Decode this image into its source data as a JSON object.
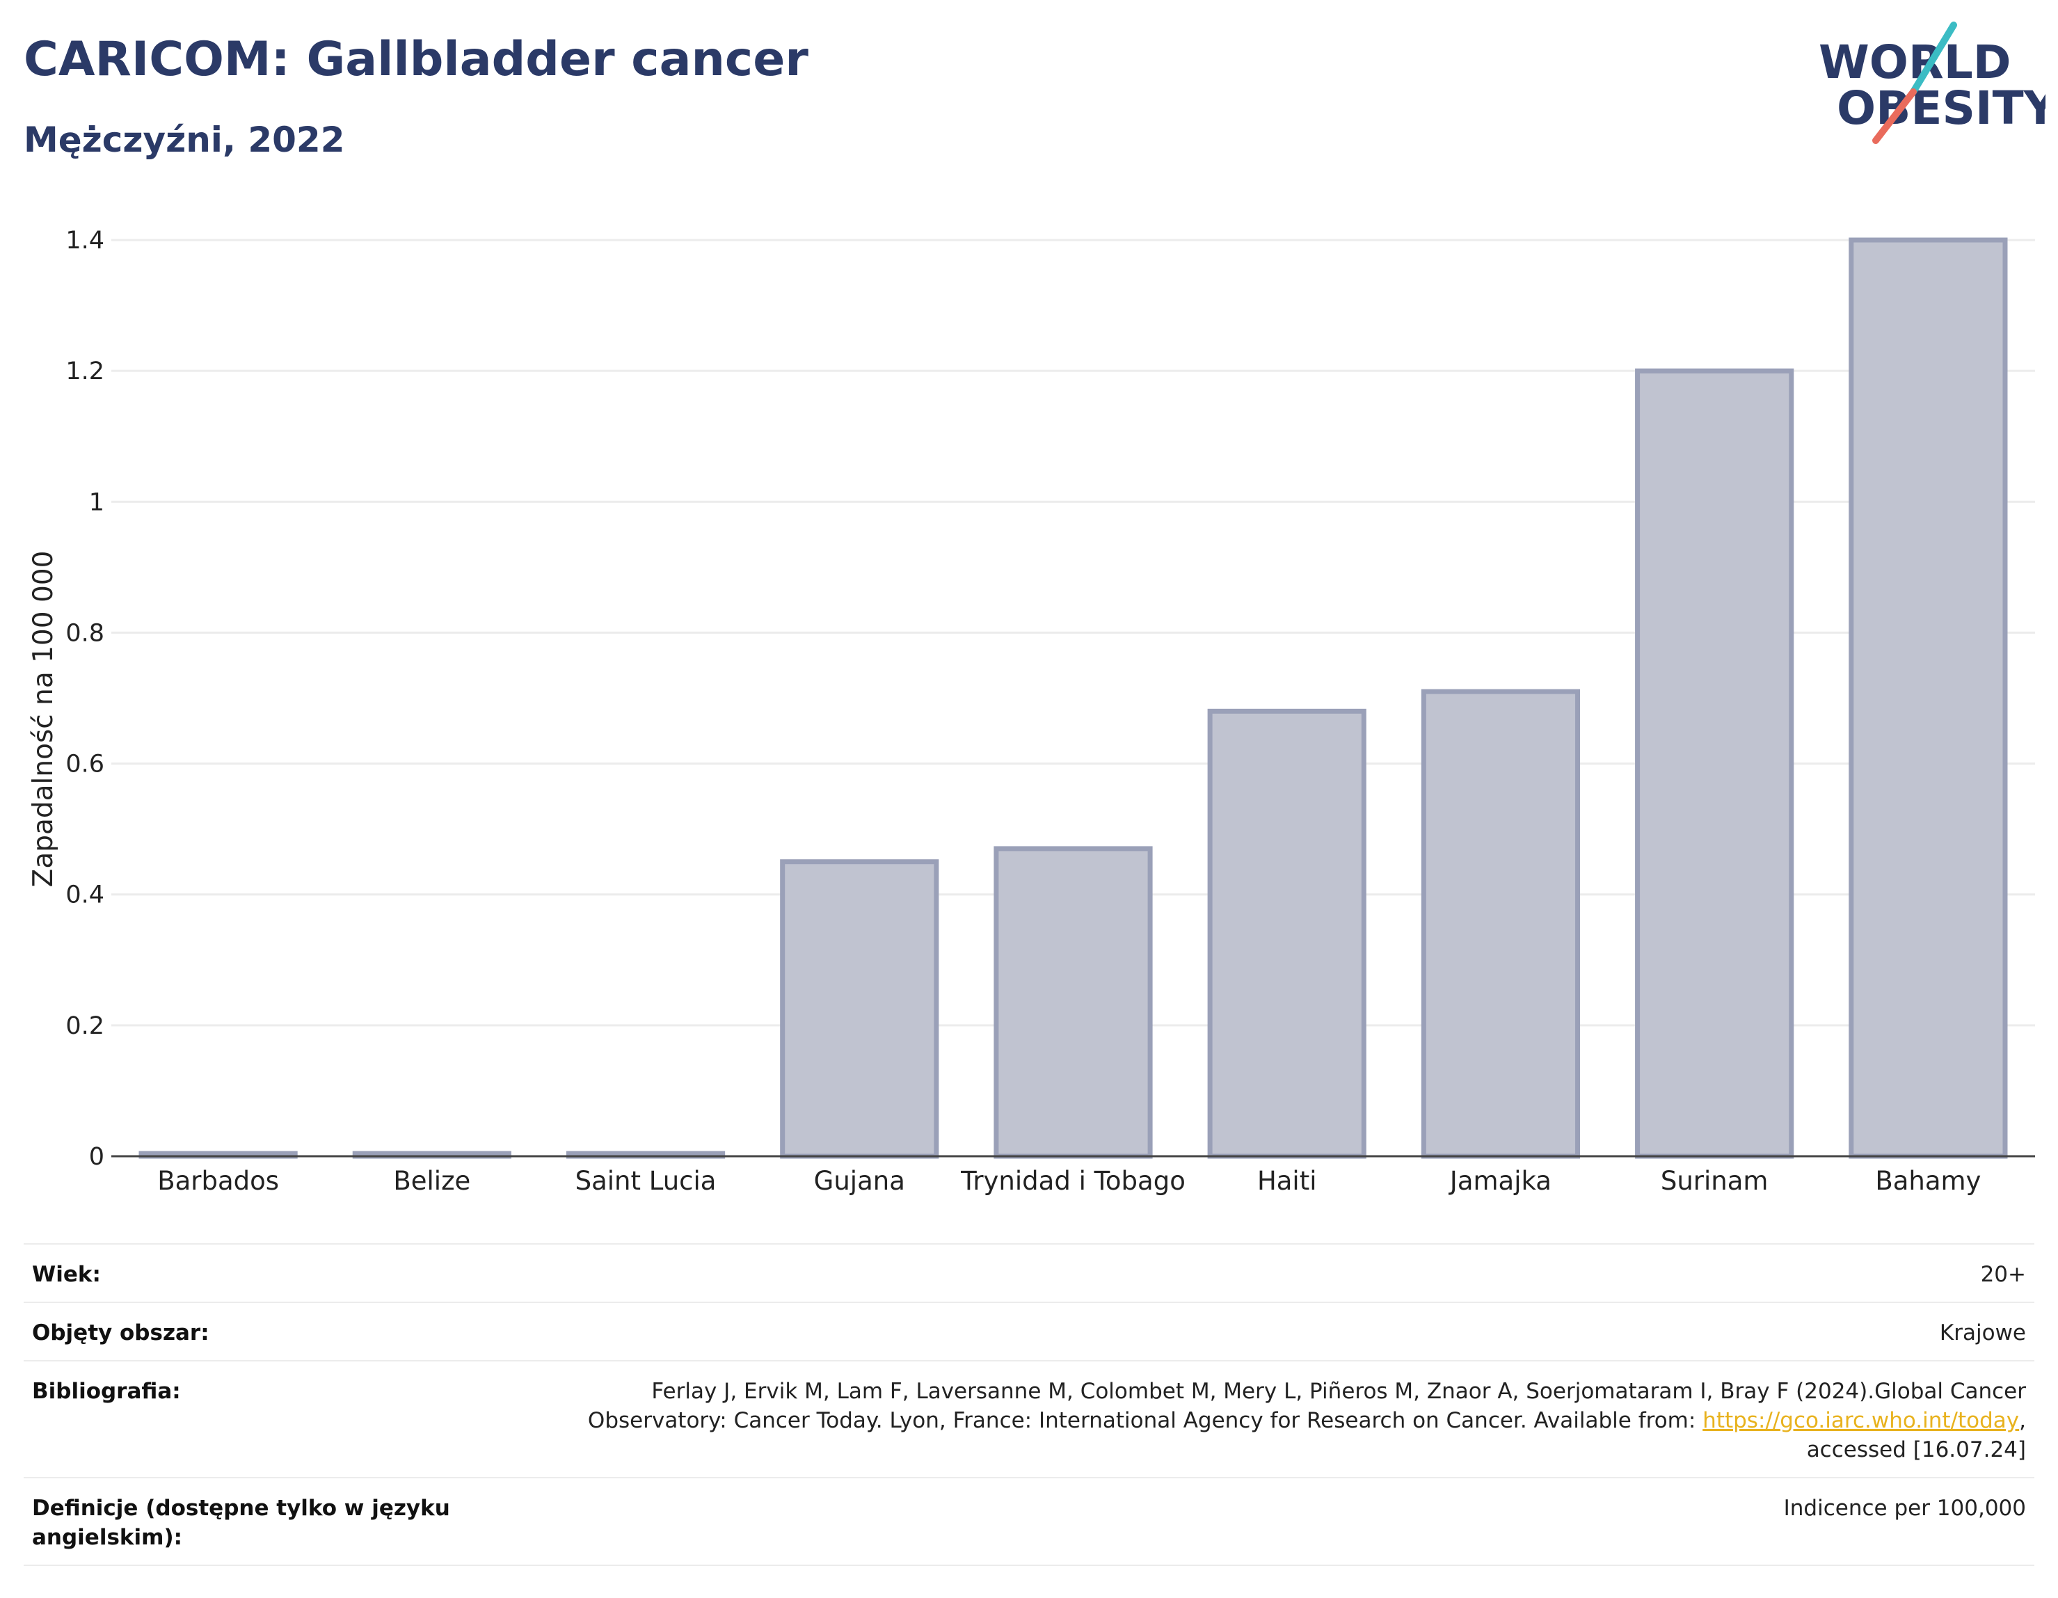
{
  "header": {
    "title": "CARICOM: Gallbladder cancer",
    "subtitle": "Mężczyźni, 2022"
  },
  "logo": {
    "line1": "WORLD",
    "line2": "OBESITY",
    "colors": {
      "text": "#2b3a67",
      "teal": "#3bbcc4",
      "coral": "#e96b5c"
    }
  },
  "chart_data": {
    "type": "bar",
    "categories": [
      "Barbados",
      "Belize",
      "Saint Lucia",
      "Gujana",
      "Trynidad i Tobago",
      "Haiti",
      "Jamajka",
      "Surinam",
      "Bahamy"
    ],
    "values": [
      0,
      0,
      0,
      0.45,
      0.47,
      0.68,
      0.71,
      1.2,
      1.4
    ],
    "xlabel": "",
    "ylabel": "Zapadalność na 100 000",
    "ylim": [
      0,
      1.4
    ],
    "yticks": [
      {
        "value": 0,
        "label": "0"
      },
      {
        "value": 0.2,
        "label": "0.2"
      },
      {
        "value": 0.4,
        "label": "0.4"
      },
      {
        "value": 0.6,
        "label": "0.6"
      },
      {
        "value": 0.8,
        "label": "0.8"
      },
      {
        "value": 1,
        "label": "1"
      },
      {
        "value": 1.2,
        "label": "1.2"
      },
      {
        "value": 1.4,
        "label": "1.4"
      }
    ],
    "grid": true,
    "colors": {
      "bar_fill": "#c0c3d0",
      "bar_stroke": "#9aa0b8",
      "axis": "#444444",
      "grid": "#ececec"
    }
  },
  "info": {
    "age_label": "Wiek:",
    "age_value": "20+",
    "area_label": "Objęty obszar:",
    "area_value": "Krajowe",
    "bib_label": "Bibliografia:",
    "bib_line1": "Ferlay J, Ervik M, Lam F, Laversanne M, Colombet M, Mery L, Piñeros M, Znaor A, Soerjomataram I, Bray F (2024).Global Cancer",
    "bib_line2_pre": "Observatory: Cancer Today. Lyon, France: International Agency for Research on Cancer. Available from: ",
    "bib_link": "https://gco.iarc.who.int/today",
    "bib_line2_post": ",",
    "bib_line3": "accessed [16.07.24]",
    "def_label": "Definicje (dostępne tylko w języku angielskim):",
    "def_value": "Indicence per 100,000"
  }
}
